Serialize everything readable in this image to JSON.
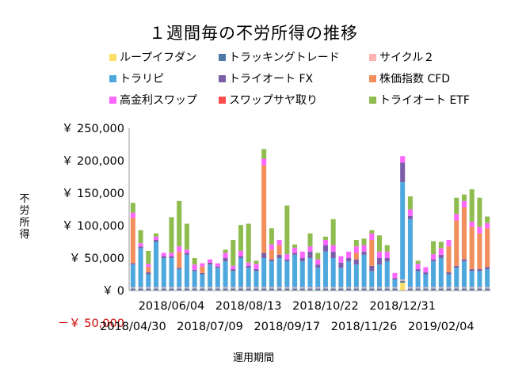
{
  "chart_data": {
    "type": "bar",
    "stacked": true,
    "title": "１週間毎の不労所得の推移",
    "xlabel": "運用期間",
    "ylabel": "不労所得",
    "ylim": [
      -50000,
      250000
    ],
    "yticks": [
      {
        "value": 250000,
        "label": "￥ 250,000"
      },
      {
        "value": 200000,
        "label": "￥ 200,000"
      },
      {
        "value": 150000,
        "label": "￥ 150,000"
      },
      {
        "value": 100000,
        "label": "￥ 100,000"
      },
      {
        "value": 50000,
        "label": "￥ 50,000"
      },
      {
        "value": 0,
        "label": "￥ 0"
      },
      {
        "value": -50000,
        "label": "－￥ 50,000"
      }
    ],
    "xtick_labels_upper": [
      {
        "index": 5,
        "label": "2018/06/04"
      },
      {
        "index": 15,
        "label": "2018/08/13"
      },
      {
        "index": 25,
        "label": "2018/10/22"
      },
      {
        "index": 35,
        "label": "2018/12/31"
      }
    ],
    "xtick_labels_lower": [
      {
        "index": 0,
        "label": "2018/04/30"
      },
      {
        "index": 10,
        "label": "2018/07/09"
      },
      {
        "index": 20,
        "label": "2018/09/17"
      },
      {
        "index": 30,
        "label": "2018/11/26"
      },
      {
        "index": 40,
        "label": "2019/02/04"
      }
    ],
    "legend_position": "top",
    "grid": false,
    "series": [
      {
        "name": "ループイフダン",
        "color": "#ffe066",
        "values": [
          0,
          0,
          0,
          0,
          0,
          0,
          0,
          0,
          0,
          0,
          0,
          0,
          0,
          0,
          0,
          0,
          0,
          0,
          0,
          0,
          0,
          0,
          0,
          0,
          0,
          0,
          0,
          0,
          0,
          0,
          0,
          0,
          0,
          0,
          0,
          12000,
          0,
          0,
          0,
          0,
          0,
          0,
          0,
          0,
          0,
          0,
          0
        ]
      },
      {
        "name": "トラッキングトレード",
        "color": "#4e79a7",
        "values": [
          3000,
          3000,
          3000,
          3000,
          3000,
          3000,
          3000,
          3000,
          3000,
          3000,
          3000,
          3000,
          3000,
          3000,
          3000,
          3000,
          3000,
          3000,
          3000,
          3000,
          3000,
          3000,
          3000,
          3000,
          3000,
          3000,
          3000,
          3000,
          3000,
          3000,
          3000,
          3000,
          3000,
          3000,
          3000,
          3000,
          3000,
          3000,
          3000,
          3000,
          3000,
          3000,
          3000,
          3000,
          3000,
          3000,
          3000
        ]
      },
      {
        "name": "サイクル２",
        "color": "#ffb3b3",
        "values": [
          2000,
          2000,
          2000,
          2000,
          2000,
          2000,
          2000,
          2000,
          2000,
          2000,
          2000,
          2000,
          2000,
          2000,
          2000,
          2000,
          2000,
          2000,
          2000,
          2000,
          2000,
          2000,
          2000,
          2000,
          2000,
          2000,
          2000,
          2000,
          2000,
          2000,
          2000,
          2000,
          2000,
          2000,
          2000,
          2000,
          2000,
          2000,
          2000,
          2000,
          2000,
          2000,
          2000,
          2000,
          2000,
          2000,
          2000
        ]
      },
      {
        "name": "トラリピ",
        "color": "#4ea8de",
        "values": [
          35000,
          60000,
          20000,
          70000,
          45000,
          45000,
          28000,
          50000,
          25000,
          20000,
          35000,
          30000,
          40000,
          25000,
          45000,
          30000,
          25000,
          45000,
          40000,
          45000,
          40000,
          50000,
          40000,
          45000,
          30000,
          55000,
          45000,
          30000,
          40000,
          35000,
          50000,
          25000,
          35000,
          40000,
          12000,
          150000,
          105000,
          25000,
          20000,
          40000,
          45000,
          20000,
          30000,
          40000,
          25000,
          25000,
          28000
        ]
      },
      {
        "name": "トライオート FX",
        "color": "#7b5ea7",
        "values": [
          2000,
          3000,
          3000,
          3000,
          3000,
          3000,
          2000,
          3000,
          2000,
          2000,
          3000,
          2000,
          5000,
          3000,
          3000,
          3000,
          3000,
          8000,
          3000,
          5000,
          3000,
          3000,
          5000,
          10000,
          5000,
          10000,
          10000,
          8000,
          5000,
          8000,
          5000,
          8000,
          10000,
          5000,
          2000,
          30000,
          5000,
          3000,
          3000,
          3000,
          5000,
          3000,
          3000,
          3000,
          3000,
          3000,
          3000
        ]
      },
      {
        "name": "株価指数 CFD",
        "color": "#f28e5b",
        "values": [
          70000,
          0,
          8000,
          0,
          0,
          0,
          25000,
          0,
          0,
          10000,
          0,
          0,
          0,
          0,
          0,
          0,
          0,
          135000,
          15000,
          15000,
          0,
          0,
          0,
          0,
          0,
          0,
          0,
          0,
          0,
          10000,
          0,
          40000,
          0,
          0,
          0,
          0,
          0,
          0,
          0,
          0,
          0,
          40000,
          70000,
          80000,
          65000,
          55000,
          60000
        ]
      },
      {
        "name": "高金利スワップ",
        "color": "#ff66ff",
        "values": [
          8000,
          5000,
          5000,
          5000,
          5000,
          5000,
          8000,
          5000,
          8000,
          5000,
          5000,
          5000,
          8000,
          5000,
          8000,
          5000,
          8000,
          10000,
          8000,
          8000,
          8000,
          8000,
          10000,
          8000,
          8000,
          8000,
          10000,
          10000,
          10000,
          10000,
          10000,
          10000,
          10000,
          10000,
          8000,
          10000,
          10000,
          8000,
          8000,
          8000,
          10000,
          10000,
          10000,
          10000,
          8000,
          10000,
          8000
        ]
      },
      {
        "name": "スワップサヤ取り",
        "color": "#ff4d4d",
        "values": [
          0,
          0,
          0,
          0,
          0,
          0,
          0,
          0,
          0,
          0,
          0,
          0,
          0,
          0,
          0,
          0,
          0,
          0,
          0,
          0,
          0,
          0,
          0,
          0,
          0,
          0,
          0,
          0,
          0,
          0,
          0,
          0,
          0,
          0,
          0,
          0,
          0,
          0,
          0,
          0,
          0,
          0,
          0,
          0,
          0,
          0,
          0
        ]
      },
      {
        "name": "トライオート ETF",
        "color": "#8fbc4f",
        "values": [
          15000,
          20000,
          20000,
          5000,
          0,
          55000,
          70000,
          40000,
          10000,
          0,
          0,
          0,
          5000,
          40000,
          40000,
          60000,
          5000,
          15000,
          25000,
          0,
          75000,
          5000,
          0,
          20000,
          10000,
          5000,
          40000,
          0,
          0,
          10000,
          10000,
          5000,
          25000,
          10000,
          0,
          0,
          20000,
          5000,
          0,
          20000,
          10000,
          0,
          25000,
          10000,
          50000,
          45000,
          10000
        ]
      }
    ]
  }
}
